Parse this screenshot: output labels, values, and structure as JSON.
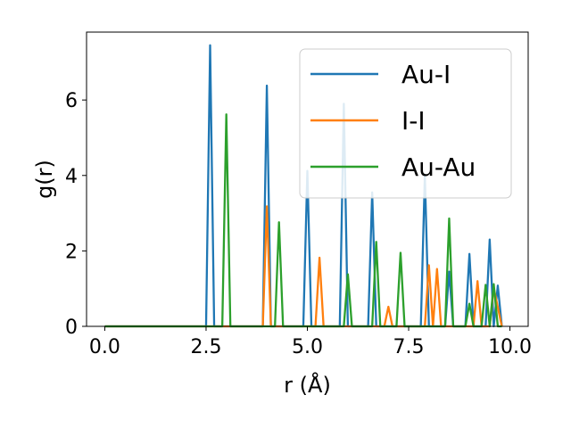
{
  "chart_data": {
    "type": "line",
    "xlabel": "r (Å)",
    "ylabel": "g(r)",
    "xlim": [
      -0.45,
      10.45
    ],
    "ylim": [
      0,
      7.8
    ],
    "xticks": [
      0.0,
      2.5,
      5.0,
      7.5,
      10.0
    ],
    "xtick_labels": [
      "0.0",
      "2.5",
      "5.0",
      "7.5",
      "10.0"
    ],
    "yticks": [
      0,
      2,
      4,
      6
    ],
    "ytick_labels": [
      "0",
      "2",
      "4",
      "6"
    ],
    "grid": false,
    "legend_position": "top-right",
    "series": [
      {
        "name": "Au-I",
        "color": "#1f77b4",
        "x": [
          0.0,
          2.5,
          2.6,
          2.7,
          3.9,
          4.0,
          4.1,
          4.9,
          5.0,
          5.1,
          5.8,
          5.9,
          6.0,
          6.5,
          6.6,
          6.7,
          7.8,
          7.9,
          8.0,
          8.4,
          8.5,
          8.6,
          8.9,
          9.0,
          9.1,
          9.4,
          9.5,
          9.6,
          9.7,
          9.8
        ],
        "y": [
          0.0,
          0.0,
          7.45,
          0.0,
          0.0,
          6.38,
          0.0,
          0.0,
          4.12,
          0.0,
          0.0,
          5.9,
          0.0,
          0.0,
          3.55,
          0.0,
          0.0,
          4.02,
          0.0,
          0.0,
          1.45,
          0.0,
          0.0,
          1.92,
          0.0,
          0.0,
          2.3,
          0.0,
          1.08,
          0.0
        ]
      },
      {
        "name": "I-I",
        "color": "#ff7f0e",
        "x": [
          0.0,
          3.9,
          4.0,
          4.1,
          5.2,
          5.3,
          5.4,
          6.9,
          7.0,
          7.1,
          7.9,
          8.0,
          8.1,
          8.2,
          8.3,
          9.1,
          9.2,
          9.3,
          9.5,
          9.6,
          9.8
        ],
        "y": [
          0.0,
          0.0,
          3.18,
          0.0,
          0.0,
          1.82,
          0.0,
          0.0,
          0.52,
          0.0,
          0.0,
          1.62,
          0.0,
          1.52,
          0.0,
          0.0,
          1.2,
          0.0,
          0.0,
          1.02,
          0.0
        ]
      },
      {
        "name": "Au-Au",
        "color": "#2ca02c",
        "x": [
          0.0,
          2.9,
          3.0,
          3.1,
          4.2,
          4.3,
          4.4,
          5.9,
          6.0,
          6.1,
          6.6,
          6.7,
          6.8,
          7.2,
          7.3,
          7.4,
          8.4,
          8.5,
          8.6,
          8.9,
          9.0,
          9.1,
          9.3,
          9.4,
          9.5,
          9.6,
          9.7,
          9.8
        ],
        "y": [
          0.0,
          0.0,
          5.62,
          0.0,
          0.0,
          2.76,
          0.0,
          0.0,
          1.38,
          0.0,
          0.0,
          2.24,
          0.0,
          0.0,
          1.95,
          0.0,
          0.0,
          2.86,
          0.0,
          0.0,
          0.6,
          0.0,
          0.0,
          1.1,
          0.0,
          1.12,
          0.0,
          0.0
        ]
      }
    ]
  }
}
